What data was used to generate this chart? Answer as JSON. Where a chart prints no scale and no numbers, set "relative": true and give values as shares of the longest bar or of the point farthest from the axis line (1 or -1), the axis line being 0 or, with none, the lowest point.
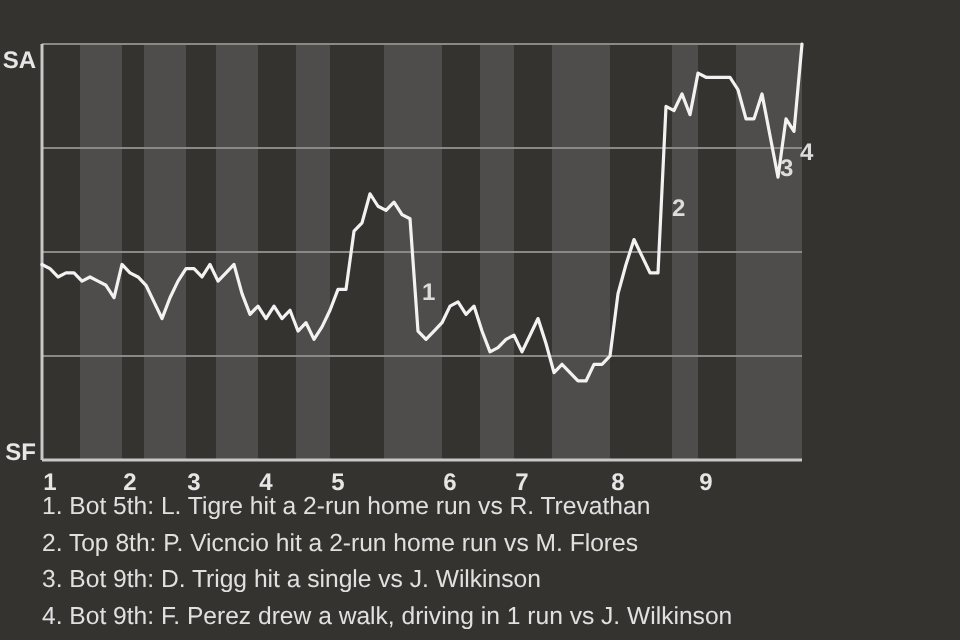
{
  "chart_data": {
    "type": "line",
    "relative": true,
    "categories": [
      null,
      "1",
      null,
      null,
      null,
      null,
      null,
      null,
      null,
      null,
      null,
      "2",
      null,
      null,
      null,
      null,
      null,
      null,
      null,
      "3",
      null,
      null,
      null,
      null,
      null,
      null,
      null,
      null,
      "4",
      null,
      null,
      null,
      null,
      null,
      null,
      null,
      null,
      "5",
      null,
      null,
      null,
      null,
      null,
      null,
      null,
      null,
      null,
      null,
      null,
      null,
      null,
      "6",
      null,
      null,
      null,
      null,
      null,
      null,
      null,
      null,
      "7",
      null,
      null,
      null,
      null,
      null,
      null,
      null,
      null,
      null,
      null,
      null,
      "8",
      null,
      null,
      null,
      null,
      null,
      null,
      null,
      null,
      null,
      null,
      "9",
      null,
      null,
      null,
      null,
      null,
      null,
      null,
      null,
      null,
      null,
      null,
      null
    ],
    "series": [
      {
        "color": "#f2f2f2",
        "values": [
          0.47,
          0.46,
          0.44,
          0.45,
          0.45,
          0.43,
          0.44,
          0.43,
          0.42,
          0.39,
          0.47,
          0.45,
          0.44,
          0.42,
          0.38,
          0.34,
          0.39,
          0.43,
          0.46,
          0.46,
          0.44,
          0.47,
          0.43,
          0.45,
          0.47,
          0.4,
          0.35,
          0.37,
          0.34,
          0.37,
          0.34,
          0.36,
          0.31,
          0.33,
          0.29,
          0.32,
          0.36,
          0.41,
          0.41,
          0.55,
          0.57,
          0.64,
          0.61,
          0.6,
          0.62,
          0.59,
          0.58,
          0.31,
          0.29,
          0.31,
          0.33,
          0.37,
          0.38,
          0.35,
          0.37,
          0.31,
          0.26,
          0.27,
          0.29,
          0.3,
          0.26,
          0.3,
          0.34,
          0.28,
          0.21,
          0.23,
          0.21,
          0.19,
          0.19,
          0.23,
          0.23,
          0.25,
          0.4,
          0.47,
          0.53,
          0.49,
          0.45,
          0.45,
          0.85,
          0.84,
          0.88,
          0.83,
          0.93,
          0.92,
          0.92,
          0.92,
          0.92,
          0.89,
          0.82,
          0.82,
          0.88,
          0.78,
          0.68,
          0.82,
          0.79,
          1.0
        ],
        "name": null
      }
    ],
    "grid": "y",
    "annotations": [
      "1",
      "2",
      "3",
      "4",
      "SA",
      "SF",
      "1. Bot 5th: L. Tigre hit a 2-run home run vs R. Trevathan",
      "2. Top 8th: P. Vicncio hit a 2-run home run vs M. Flores",
      "3. Bot 9th: D. Trigg hit a single vs J. Wilkinson",
      "4. Bot 9th: F. Perez drew a walk, driving in 1 run vs J. Wilkinson"
    ]
  }
}
